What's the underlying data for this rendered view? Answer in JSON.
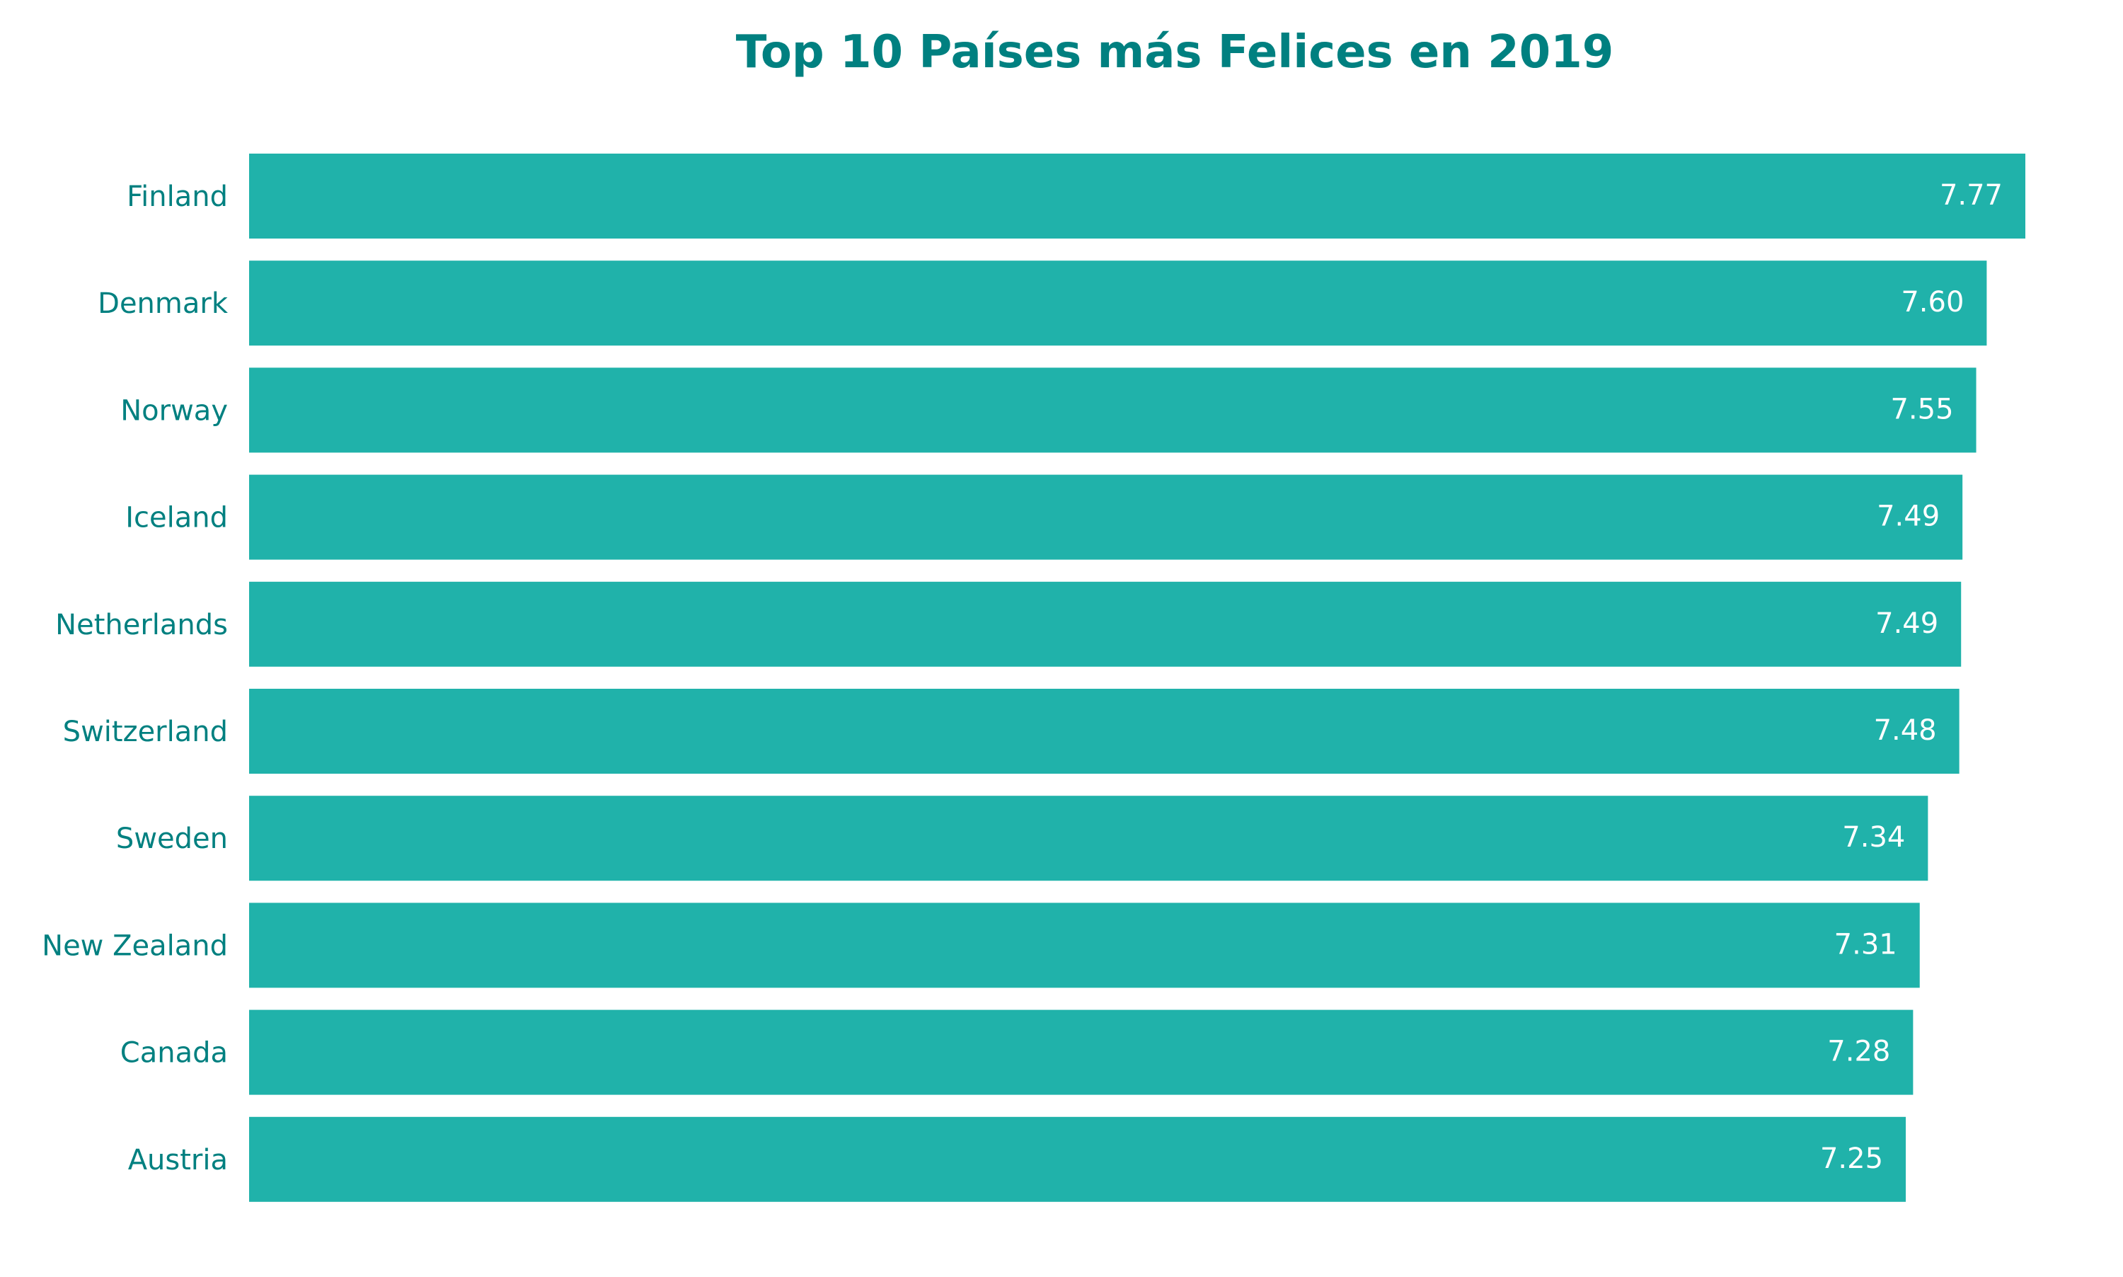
{
  "chart_data": {
    "type": "bar",
    "orientation": "horizontal",
    "title": "Top 10 Países más Felices en 2019",
    "categories": [
      "Finland",
      "Denmark",
      "Norway",
      "Iceland",
      "Netherlands",
      "Switzerland",
      "Sweden",
      "New Zealand",
      "Canada",
      "Austria"
    ],
    "values": [
      7.769,
      7.6,
      7.554,
      7.494,
      7.488,
      7.48,
      7.343,
      7.307,
      7.278,
      7.246
    ],
    "value_labels": [
      "7.77",
      "7.60",
      "7.55",
      "7.49",
      "7.49",
      "7.48",
      "7.34",
      "7.31",
      "7.28",
      "7.25"
    ],
    "xlabel": "",
    "ylabel": "",
    "xlim": [
      0,
      7.769
    ],
    "grid": false,
    "legend": "none",
    "colors": {
      "bar": "#20B2AA",
      "title": "#008080",
      "category_label": "#008080",
      "value_label": "#ffffff"
    }
  }
}
